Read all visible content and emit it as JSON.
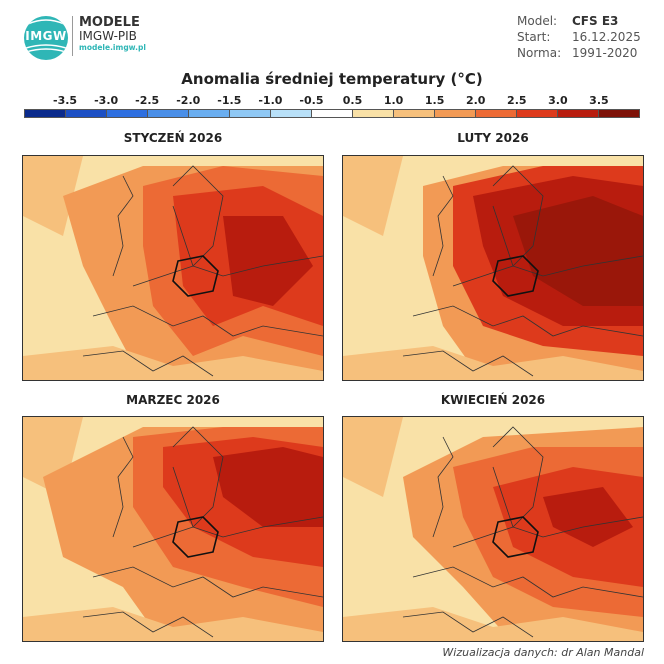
{
  "header": {
    "logo_text": "IMGW",
    "brand_line1": "MODELE",
    "brand_line2": "IMGW-PIB",
    "brand_url": "modele.imgw.pl"
  },
  "meta": {
    "model_label": "Model:",
    "model_value": "CFS E3",
    "start_label": "Start:",
    "start_value": "16.12.2025",
    "norma_label": "Norma:",
    "norma_value": "1991-2020"
  },
  "title": "Anomalia średniej temperatury (°C)",
  "colorbar": {
    "ticks": [
      "-3.5",
      "-3.0",
      "-2.5",
      "-2.0",
      "-1.5",
      "-1.0",
      "-0.5",
      "0.5",
      "1.0",
      "1.5",
      "2.0",
      "2.5",
      "3.0",
      "3.5"
    ],
    "colors": [
      "#0a2a8c",
      "#1c4fc4",
      "#2e6fe0",
      "#4a8fe8",
      "#6aaef0",
      "#8fc8f4",
      "#b8e0f8",
      "#ffffff",
      "#f9e1a7",
      "#f6c07c",
      "#f29a55",
      "#ec6a35",
      "#dd3a1c",
      "#b81c0e",
      "#7e1208"
    ]
  },
  "panels": [
    {
      "title": "STYCZEŃ 2026",
      "colors": {
        "base": "#f9e1a7",
        "mid": "#f6c07c",
        "warm": "#f29a55",
        "hot": "#ec6a35",
        "hotter": "#dd3a1c",
        "hottest": "#b81c0e"
      }
    },
    {
      "title": "LUTY 2026",
      "colors": {
        "base": "#f9e1a7",
        "mid": "#f6c07c",
        "warm": "#f29a55",
        "hot": "#dd3a1c",
        "hotter": "#b81c0e",
        "hottest": "#9a170a"
      }
    },
    {
      "title": "MARZEC 2026",
      "colors": {
        "base": "#f9e1a7",
        "mid": "#f6c07c",
        "warm": "#f29a55",
        "hot": "#ec6a35",
        "hotter": "#dd3a1c",
        "hottest": "#b81c0e"
      }
    },
    {
      "title": "KWIECIEŃ 2026",
      "colors": {
        "base": "#f9e1a7",
        "mid": "#f6c07c",
        "warm": "#f29a55",
        "hot": "#ec6a35",
        "hotter": "#dd3a1c",
        "hottest": "#b81c0e"
      }
    }
  ],
  "credit": "Wizualizacja danych: dr Alan Mandal"
}
